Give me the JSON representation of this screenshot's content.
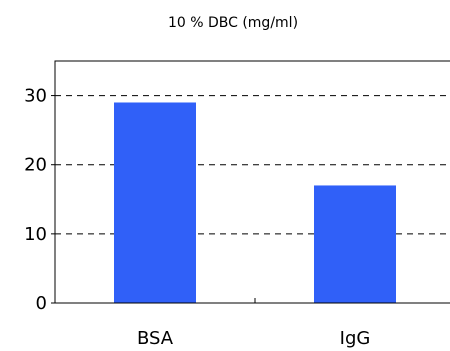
{
  "chart_data": {
    "type": "bar",
    "title": "10 % DBC (mg/ml)",
    "xlabel": "",
    "ylabel": "",
    "categories": [
      "BSA",
      "IgG"
    ],
    "values": [
      29,
      17
    ],
    "ylim": [
      0,
      35
    ],
    "yticks": [
      0,
      10,
      20,
      30
    ],
    "grid": "dashed horizontal",
    "bar_color": "#3060f8"
  }
}
